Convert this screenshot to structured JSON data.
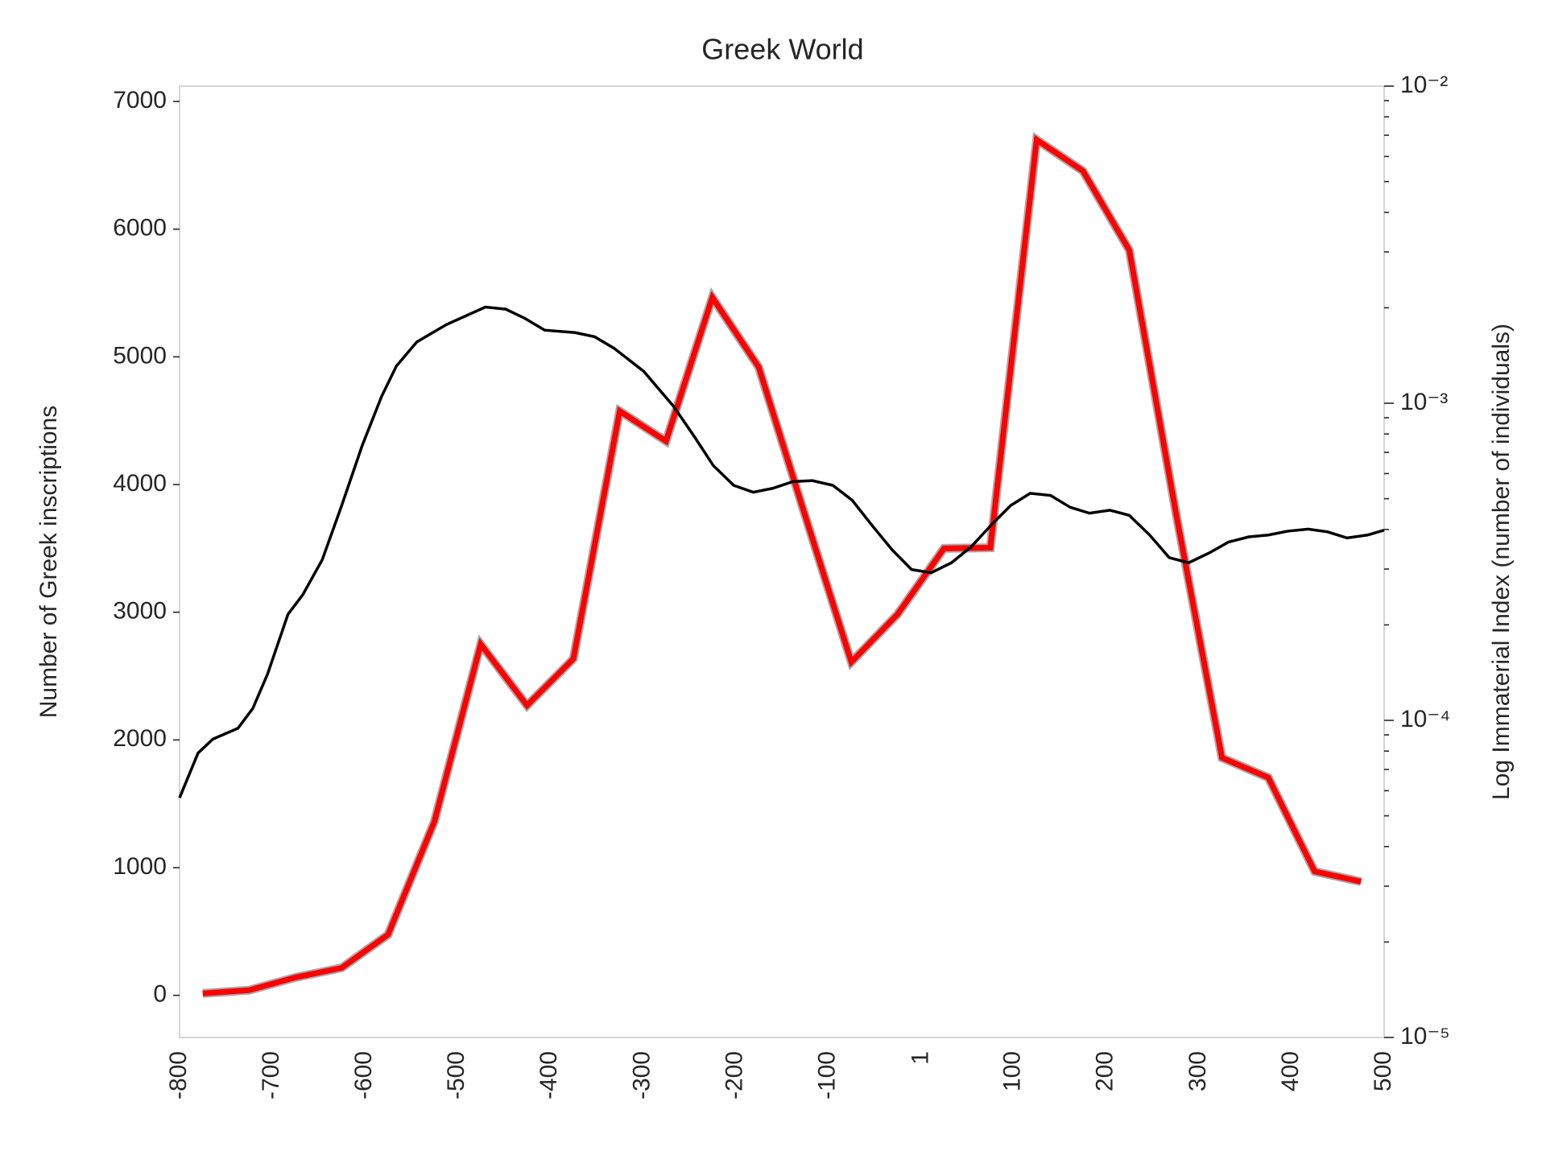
{
  "chart_data": {
    "type": "line",
    "title": "Greek World",
    "y_label": "Number of Greek inscriptions",
    "y2_label": "Log Immaterial Index (number of individuals)",
    "xlim": [
      -800,
      500
    ],
    "xticks": [
      -800,
      -700,
      -600,
      -500,
      -400,
      -300,
      -200,
      -100,
      1,
      100,
      200,
      300,
      400,
      500
    ],
    "ylim": [
      -330,
      7120
    ],
    "yticks": [
      0,
      1000,
      2000,
      3000,
      4000,
      5000,
      6000,
      7000
    ],
    "y2lim": [
      1e-05,
      0.01
    ],
    "y2scale": "log",
    "y2ticks": [
      {
        "value": 1e-05,
        "label": "10⁻⁵"
      },
      {
        "value": 0.0001,
        "label": "10⁻⁴"
      },
      {
        "value": 0.001,
        "label": "10⁻³"
      },
      {
        "value": 0.01,
        "label": "10⁻²"
      }
    ],
    "grid": false,
    "series": [
      {
        "color": "#ff0000",
        "x": [
          -775,
          -725,
          -675,
          -625,
          -575,
          -525,
          -475,
          -425,
          -375,
          -325,
          -275,
          -225,
          -175,
          -125,
          -75,
          -25,
          25,
          75,
          125,
          175,
          225,
          275,
          325,
          375,
          425,
          475
        ],
        "values": [
          15,
          40,
          140,
          215,
          475,
          1360,
          2750,
          2270,
          2635,
          4575,
          4340,
          5465,
          4920,
          3760,
          2610,
          2985,
          3500,
          3505,
          6700,
          6455,
          5835,
          3790,
          1860,
          1705,
          970,
          890
        ]
      },
      {
        "color": "#000000",
        "axis": "y2",
        "x": [
          -800,
          -780,
          -764,
          -737,
          -721,
          -705,
          -683,
          -667,
          -646,
          -625,
          -603,
          -582,
          -566,
          -544,
          -512,
          -470,
          -448,
          -427,
          -406,
          -373,
          -352,
          -331,
          -299,
          -267,
          -245,
          -224,
          -202,
          -181,
          -160,
          -138,
          -117,
          -95,
          -74,
          -53,
          -31,
          -10,
          11,
          33,
          54,
          76,
          97,
          118,
          140,
          161,
          182,
          204,
          225,
          247,
          268,
          289,
          311,
          332,
          354,
          375,
          396,
          418,
          439,
          460,
          482,
          500
        ],
        "values": [
          5.7e-05,
          7.89e-05,
          8.73e-05,
          9.44e-05,
          0.000109,
          0.00014,
          0.000216,
          0.000249,
          0.000321,
          0.000476,
          0.000734,
          0.00105,
          0.00131,
          0.00156,
          0.00177,
          0.00201,
          0.00198,
          0.00185,
          0.0017,
          0.00167,
          0.00162,
          0.00149,
          0.00126,
          0.000979,
          0.000789,
          0.000636,
          0.000551,
          0.000524,
          0.000539,
          0.000566,
          0.00057,
          0.000551,
          0.000494,
          0.000413,
          0.000345,
          0.000299,
          0.000292,
          0.000314,
          0.000352,
          0.000413,
          0.000476,
          0.00052,
          0.000512,
          0.00047,
          0.00045,
          0.00046,
          0.000443,
          0.000384,
          0.000326,
          0.000314,
          0.000337,
          0.000365,
          0.000379,
          0.000384,
          0.000395,
          0.000401,
          0.000393,
          0.000376,
          0.000384,
          0.000398
        ]
      }
    ]
  }
}
